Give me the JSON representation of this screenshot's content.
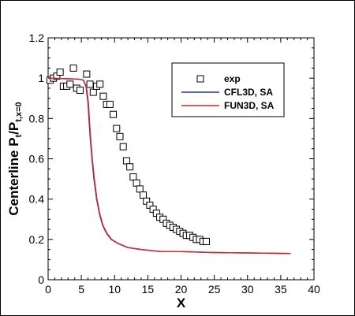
{
  "chart_data": {
    "type": "line",
    "xlabel": "X",
    "ylabel_main": "Centerline P",
    "ylabel_sub1": "t",
    "ylabel_mid": "/P",
    "ylabel_sub2": "t,x=0",
    "xlim": [
      0,
      40
    ],
    "ylim": [
      0,
      1.2
    ],
    "xticks": [
      0,
      5,
      10,
      15,
      20,
      25,
      30,
      35,
      40
    ],
    "yticks": [
      0,
      0.2,
      0.4,
      0.6,
      0.8,
      1,
      1.2
    ],
    "ytick_labels": [
      "0",
      "0.2",
      "0.4",
      "0.6",
      "0.8",
      "1",
      "1.2"
    ],
    "legend_position": "top-right",
    "series": [
      {
        "name": "exp",
        "kind": "marker",
        "marker": "square",
        "color": "#000000",
        "points": [
          [
            0.3,
            0.99
          ],
          [
            0.8,
            1.0
          ],
          [
            1.3,
            1.01
          ],
          [
            1.8,
            1.03
          ],
          [
            2.3,
            0.96
          ],
          [
            2.8,
            0.96
          ],
          [
            3.3,
            0.97
          ],
          [
            3.8,
            1.05
          ],
          [
            4.3,
            0.95
          ],
          [
            4.8,
            0.94
          ],
          [
            5.8,
            1.02
          ],
          [
            6.3,
            0.97
          ],
          [
            6.8,
            0.93
          ],
          [
            7.3,
            0.96
          ],
          [
            7.8,
            0.97
          ],
          [
            8.3,
            0.91
          ],
          [
            8.8,
            0.87
          ],
          [
            9.3,
            0.87
          ],
          [
            9.8,
            0.82
          ],
          [
            10.3,
            0.75
          ],
          [
            10.8,
            0.71
          ],
          [
            11.3,
            0.66
          ],
          [
            11.8,
            0.59
          ],
          [
            12.3,
            0.56
          ],
          [
            12.8,
            0.51
          ],
          [
            13.3,
            0.48
          ],
          [
            13.8,
            0.45
          ],
          [
            14.3,
            0.42
          ],
          [
            14.8,
            0.39
          ],
          [
            15.3,
            0.37
          ],
          [
            15.8,
            0.35
          ],
          [
            16.3,
            0.33
          ],
          [
            16.8,
            0.31
          ],
          [
            17.3,
            0.3
          ],
          [
            17.8,
            0.28
          ],
          [
            18.3,
            0.27
          ],
          [
            18.8,
            0.26
          ],
          [
            19.3,
            0.25
          ],
          [
            19.8,
            0.24
          ],
          [
            20.3,
            0.23
          ],
          [
            20.8,
            0.22
          ],
          [
            21.3,
            0.22
          ],
          [
            21.8,
            0.21
          ],
          [
            22.3,
            0.2
          ],
          [
            22.8,
            0.2
          ],
          [
            23.3,
            0.19
          ],
          [
            23.8,
            0.19
          ]
        ]
      },
      {
        "name": "CFL3D, SA",
        "kind": "line",
        "color": "#2a2aa8",
        "points": [
          [
            0,
            1.0
          ],
          [
            4.5,
            0.995
          ],
          [
            5.3,
            0.99
          ],
          [
            5.7,
            0.96
          ],
          [
            6.0,
            0.88
          ],
          [
            6.3,
            0.72
          ],
          [
            6.6,
            0.6
          ],
          [
            6.9,
            0.5
          ],
          [
            7.3,
            0.4
          ],
          [
            7.7,
            0.33
          ],
          [
            8.2,
            0.27
          ],
          [
            8.8,
            0.23
          ],
          [
            9.5,
            0.2
          ],
          [
            10.5,
            0.18
          ],
          [
            12,
            0.16
          ],
          [
            14,
            0.15
          ],
          [
            17,
            0.14
          ],
          [
            20,
            0.14
          ],
          [
            25,
            0.135
          ],
          [
            30,
            0.133
          ],
          [
            36.5,
            0.13
          ]
        ]
      },
      {
        "name": "FUN3D, SA",
        "kind": "line",
        "color": "#cc2a2a",
        "points": [
          [
            0,
            1.0
          ],
          [
            4.5,
            0.995
          ],
          [
            5.3,
            0.99
          ],
          [
            5.75,
            0.96
          ],
          [
            6.05,
            0.88
          ],
          [
            6.35,
            0.72
          ],
          [
            6.65,
            0.6
          ],
          [
            6.95,
            0.5
          ],
          [
            7.35,
            0.4
          ],
          [
            7.75,
            0.33
          ],
          [
            8.25,
            0.27
          ],
          [
            8.85,
            0.23
          ],
          [
            9.55,
            0.2
          ],
          [
            10.5,
            0.18
          ],
          [
            12,
            0.16
          ],
          [
            14,
            0.15
          ],
          [
            17,
            0.14
          ],
          [
            20,
            0.14
          ],
          [
            25,
            0.135
          ],
          [
            30,
            0.133
          ],
          [
            36.5,
            0.13
          ]
        ]
      }
    ]
  }
}
